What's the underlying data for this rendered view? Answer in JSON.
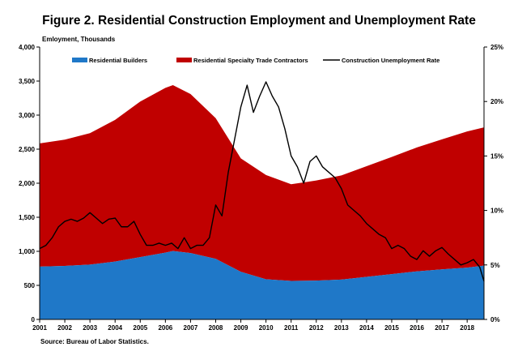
{
  "chart_data": {
    "type": "area",
    "title": "Figure 2. Residential Construction Employment and Unemployment Rate",
    "ylabel": "Emloyment, Thousands",
    "xlabel": "",
    "source": "Source: Bureau of Labor Statistics.",
    "xlim": [
      2001,
      2018.67
    ],
    "ylim": [
      0,
      4000
    ],
    "y2lim": [
      0,
      25
    ],
    "x_ticks": [
      "2001",
      "2002",
      "2003",
      "2004",
      "2005",
      "2006",
      "2007",
      "2008",
      "2009",
      "2010",
      "2011",
      "2012",
      "2013",
      "2014",
      "2015",
      "2016",
      "2017",
      "2018"
    ],
    "y_ticks": [
      "0",
      "500",
      "1,000",
      "1,500",
      "2,000",
      "2,500",
      "3,000",
      "3,500",
      "4,000"
    ],
    "y2_ticks": [
      "0%",
      "5%",
      "10%",
      "15%",
      "20%",
      "25%"
    ],
    "legend": [
      "Residential Builders",
      "Residential Specialty Trade Contractors",
      "Construction Unemployment Rate"
    ],
    "colors": {
      "builders": "#1f78c8",
      "specialty": "#c00000",
      "unemployment": "#000000"
    },
    "series": [
      {
        "name": "Residential Builders",
        "x": [
          2001,
          2002,
          2003,
          2004,
          2005,
          2006,
          2006.3,
          2007,
          2008,
          2009,
          2010,
          2011,
          2012,
          2013,
          2014,
          2015,
          2016,
          2017,
          2018,
          2018.67
        ],
        "values": [
          775,
          785,
          805,
          850,
          915,
          980,
          1005,
          975,
          890,
          700,
          590,
          565,
          570,
          585,
          625,
          665,
          705,
          735,
          760,
          790
        ]
      },
      {
        "name": "Residential Specialty Trade Contractors",
        "x": [
          2001,
          2002,
          2003,
          2004,
          2005,
          2006,
          2006.3,
          2007,
          2008,
          2009,
          2010,
          2011,
          2012,
          2013,
          2014,
          2015,
          2016,
          2017,
          2018,
          2018.67
        ],
        "values": [
          1810,
          1855,
          1930,
          2080,
          2285,
          2420,
          2435,
          2335,
          2065,
          1665,
          1530,
          1420,
          1470,
          1530,
          1625,
          1720,
          1820,
          1910,
          2000,
          2030
        ]
      },
      {
        "name": "Construction Unemployment Rate",
        "axis": "right",
        "x": [
          2001,
          2001.25,
          2001.5,
          2001.75,
          2002,
          2002.25,
          2002.5,
          2002.75,
          2003,
          2003.25,
          2003.5,
          2003.75,
          2004,
          2004.25,
          2004.5,
          2004.75,
          2005,
          2005.25,
          2005.5,
          2005.75,
          2006,
          2006.25,
          2006.5,
          2006.75,
          2007,
          2007.25,
          2007.5,
          2007.75,
          2008,
          2008.25,
          2008.5,
          2008.75,
          2009,
          2009.25,
          2009.5,
          2009.75,
          2010,
          2010.25,
          2010.5,
          2010.75,
          2011,
          2011.25,
          2011.5,
          2011.75,
          2012,
          2012.25,
          2012.5,
          2012.75,
          2013,
          2013.25,
          2013.5,
          2013.75,
          2014,
          2014.25,
          2014.5,
          2014.75,
          2015,
          2015.25,
          2015.5,
          2015.75,
          2016,
          2016.25,
          2016.5,
          2016.75,
          2017,
          2017.25,
          2017.5,
          2017.75,
          2018,
          2018.25,
          2018.5,
          2018.67
        ],
        "values": [
          6.5,
          6.8,
          7.5,
          8.5,
          9.0,
          9.2,
          9.0,
          9.3,
          9.8,
          9.3,
          8.8,
          9.2,
          9.3,
          8.5,
          8.5,
          9.0,
          7.8,
          6.8,
          6.8,
          7.0,
          6.8,
          7.0,
          6.5,
          7.5,
          6.5,
          6.8,
          6.8,
          7.5,
          10.5,
          9.5,
          13.5,
          16.5,
          19.5,
          21.5,
          19.0,
          20.5,
          21.8,
          20.5,
          19.5,
          17.5,
          15.0,
          14.0,
          12.5,
          14.5,
          15.0,
          14.0,
          13.5,
          13.0,
          12.0,
          10.5,
          10.0,
          9.5,
          8.8,
          8.3,
          7.8,
          7.5,
          6.5,
          6.8,
          6.5,
          5.8,
          5.5,
          6.3,
          5.8,
          6.3,
          6.6,
          6.0,
          5.5,
          5.0,
          5.2,
          5.5,
          4.8,
          3.5
        ]
      }
    ]
  }
}
